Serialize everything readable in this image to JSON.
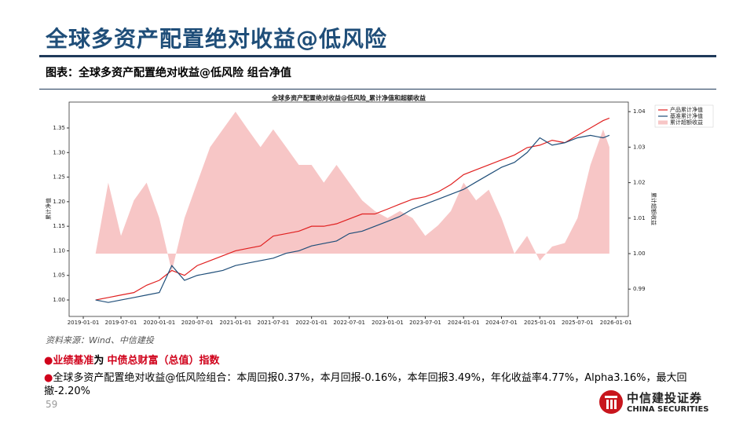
{
  "header": {
    "title": "全球多资产配置绝对收益@低风险",
    "subtitle": "图表：全球多资产配置绝对收益@低风险 组合净值"
  },
  "chart_data": {
    "type": "line",
    "title": "全球多资产配置绝对收益@低风险_累计净值和超额收益",
    "ylabel": "累计净值",
    "y2label": "累计超额收益",
    "x": [
      "2019-03-01",
      "2019-05-01",
      "2019-07-01",
      "2019-09-01",
      "2019-11-01",
      "2020-01-01",
      "2020-03-01",
      "2020-05-01",
      "2020-07-01",
      "2020-09-01",
      "2020-11-01",
      "2021-01-01",
      "2021-03-01",
      "2021-05-01",
      "2021-07-01",
      "2021-09-01",
      "2021-11-01",
      "2022-01-01",
      "2022-03-01",
      "2022-05-01",
      "2022-07-01",
      "2022-09-01",
      "2022-11-01",
      "2023-01-01",
      "2023-03-01",
      "2023-05-01",
      "2023-07-01",
      "2023-09-01",
      "2023-11-01",
      "2024-01-01",
      "2024-03-01",
      "2024-05-01",
      "2024-07-01",
      "2024-09-01",
      "2024-11-01",
      "2025-01-01",
      "2025-03-01",
      "2025-05-01",
      "2025-07-01",
      "2025-09-01",
      "2025-11-01",
      "2025-12-01"
    ],
    "xlim": [
      "2018-10-25",
      "2026-03-02"
    ],
    "xticks": [
      "2019-01-01",
      "2019-07-01",
      "2020-01-01",
      "2020-07-01",
      "2021-01-01",
      "2021-07-01",
      "2022-01-01",
      "2022-07-01",
      "2023-01-01",
      "2023-07-01",
      "2024-01-01",
      "2024-07-01",
      "2025-01-01",
      "2025-07-01",
      "2026-01-01"
    ],
    "ylim": [
      0.9665,
      1.4027
    ],
    "yticks": [
      {
        "value": 1,
        "label": "1.00"
      },
      1.05,
      {
        "value": 1.1,
        "label": "1.10"
      },
      1.15,
      {
        "value": 1.2,
        "label": "1.20"
      },
      1.25,
      {
        "value": 1.3,
        "label": "1.30"
      },
      1.35
    ],
    "y2lim": [
      0.9823,
      1.0427
    ],
    "y2ticks": [
      0.99,
      {
        "value": 1,
        "label": "1.00"
      },
      1.01,
      1.02,
      1.03,
      1.04
    ],
    "series": [
      {
        "name": "产品累计净值",
        "color": "#e02020",
        "values": [
          1.0,
          1.005,
          1.01,
          1.015,
          1.03,
          1.04,
          1.06,
          1.05,
          1.07,
          1.08,
          1.09,
          1.1,
          1.105,
          1.11,
          1.13,
          1.135,
          1.14,
          1.15,
          1.15,
          1.155,
          1.165,
          1.175,
          1.175,
          1.185,
          1.195,
          1.205,
          1.21,
          1.22,
          1.235,
          1.255,
          1.265,
          1.275,
          1.285,
          1.295,
          1.31,
          1.315,
          1.325,
          1.32,
          1.335,
          1.35,
          1.365,
          1.37
        ]
      },
      {
        "name": "基准累计净值",
        "color": "#1f4e79",
        "values": [
          1.0,
          0.995,
          1.0,
          1.005,
          1.01,
          1.015,
          1.07,
          1.04,
          1.05,
          1.055,
          1.06,
          1.07,
          1.075,
          1.08,
          1.085,
          1.095,
          1.1,
          1.11,
          1.115,
          1.12,
          1.135,
          1.14,
          1.15,
          1.16,
          1.17,
          1.185,
          1.195,
          1.205,
          1.215,
          1.225,
          1.24,
          1.255,
          1.27,
          1.28,
          1.3,
          1.33,
          1.315,
          1.32,
          1.33,
          1.335,
          1.33,
          1.335
        ]
      },
      {
        "name": "累计超额收益",
        "color": "#f7c6c6",
        "axis": "y2",
        "type": "area",
        "values": [
          1.0,
          1.02,
          1.005,
          1.015,
          1.02,
          1.01,
          0.995,
          1.01,
          1.02,
          1.03,
          1.035,
          1.04,
          1.035,
          1.03,
          1.035,
          1.03,
          1.025,
          1.025,
          1.02,
          1.025,
          1.02,
          1.015,
          1.012,
          1.01,
          1.012,
          1.01,
          1.005,
          1.008,
          1.012,
          1.02,
          1.015,
          1.018,
          1.01,
          1.0,
          1.005,
          0.998,
          1.002,
          1.003,
          1.01,
          1.025,
          1.035,
          1.03
        ]
      }
    ]
  },
  "source": "资料来源：Wind、中信建投",
  "bullets": [
    {
      "parts": [
        "业绩基准",
        "为",
        "中债总财富（总值）指数"
      ]
    },
    {
      "text": "全球多资产配置绝对收益@低风险组合：本周回报0.37%，本月回报-0.16%，本年回报3.49%，年化收益率4.77%，Alpha3.16%，最大回撤-2.20%"
    }
  ],
  "page_number": "59",
  "logo": {
    "cn": "中信建投证券",
    "en": "CHINA SECURITIES"
  }
}
